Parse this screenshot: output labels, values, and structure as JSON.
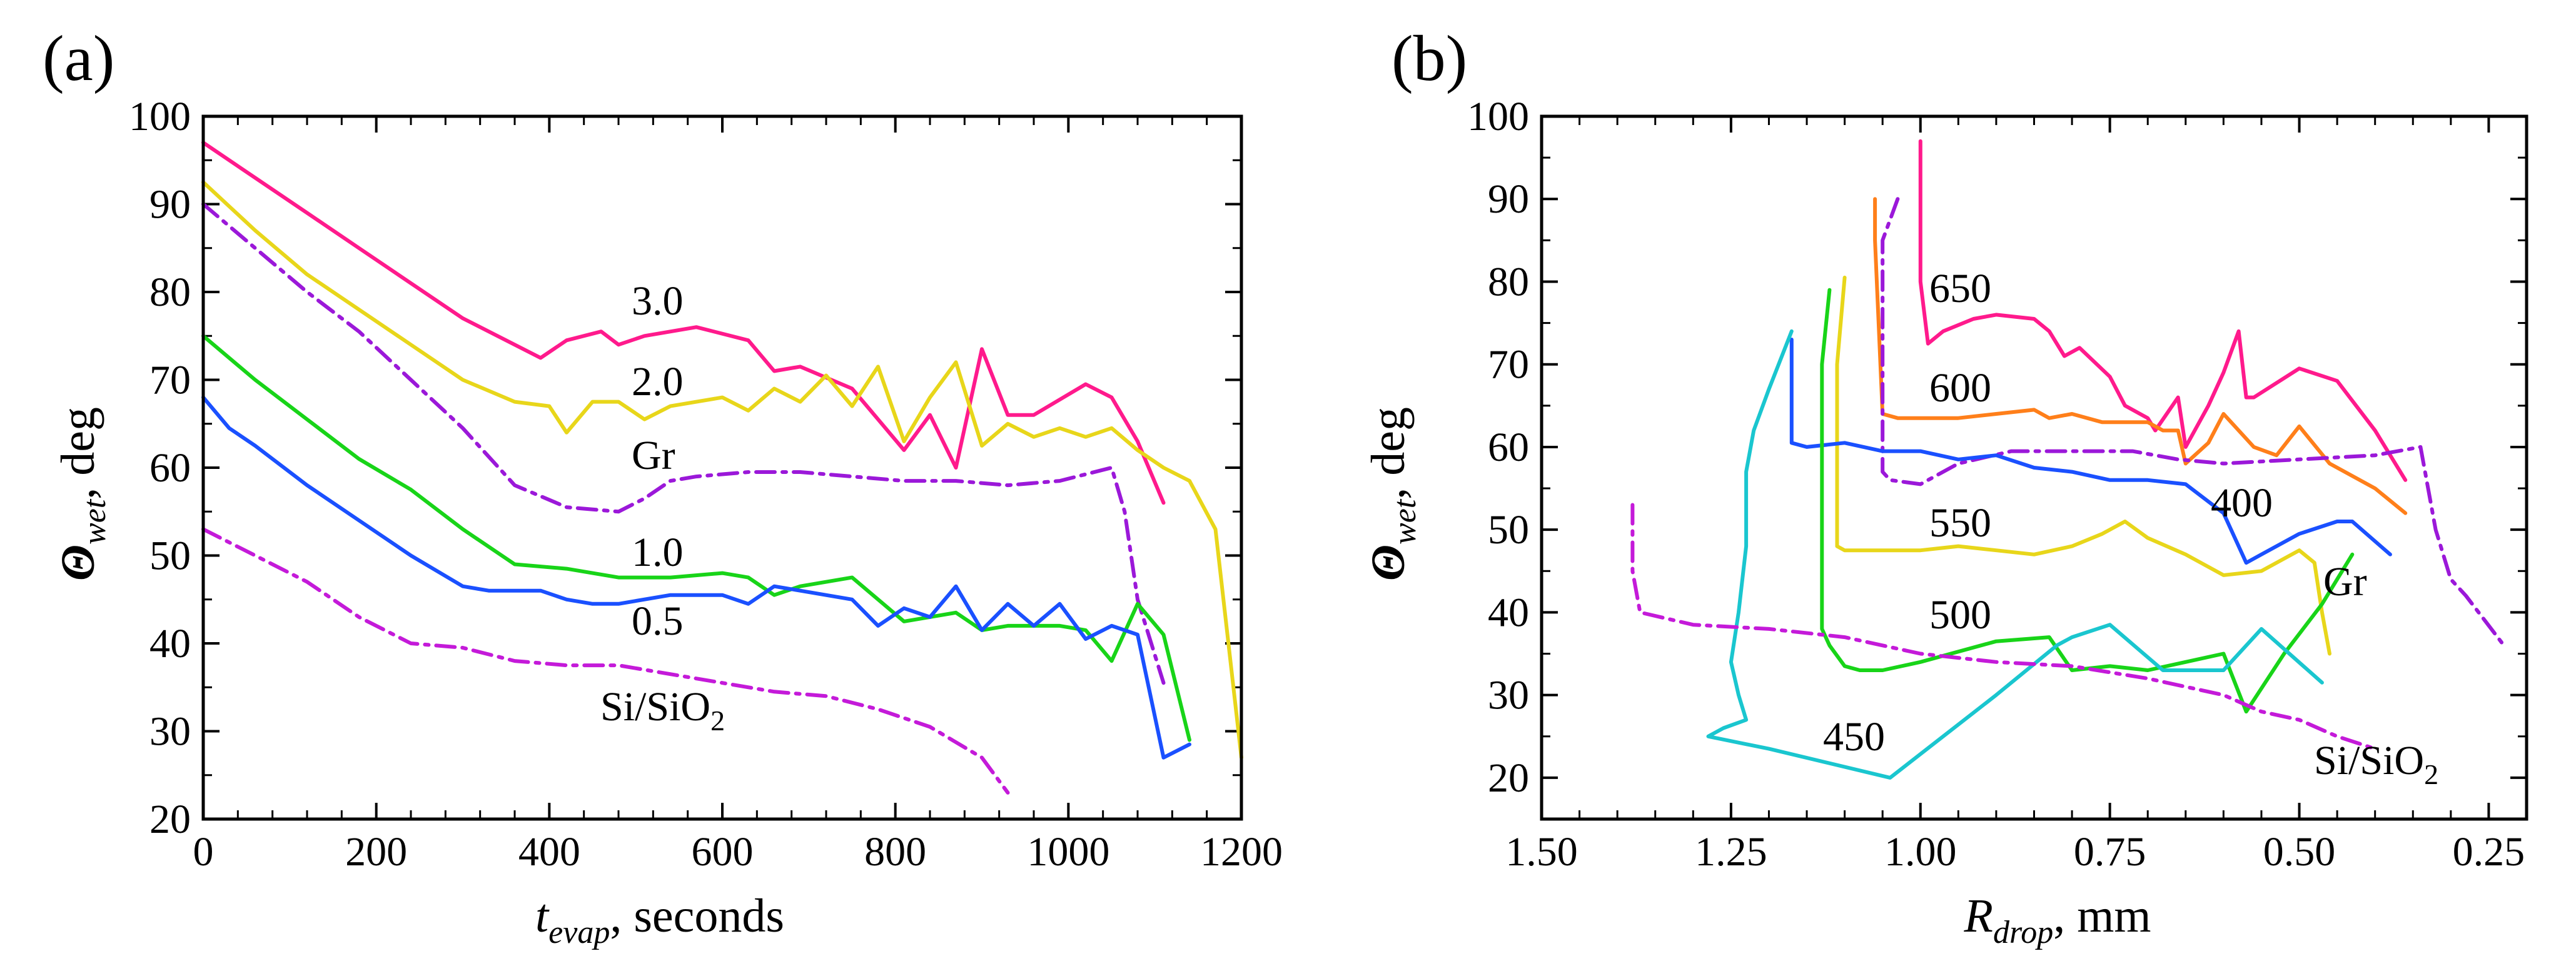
{
  "chart_data": [
    {
      "type": "line",
      "panel_label": "(a)",
      "xlabel": {
        "var": "t",
        "sub": "evap",
        "rest": ", seconds"
      },
      "ylabel": {
        "var": "Θ",
        "sub": "wet",
        "rest": ", deg"
      },
      "xlim": [
        0,
        1200
      ],
      "ylim": [
        20,
        100
      ],
      "xticks": [
        "0",
        "200",
        "400",
        "600",
        "800",
        "1000",
        "1200"
      ],
      "yticks": [
        "20",
        "30",
        "40",
        "50",
        "60",
        "70",
        "80",
        "90",
        "100"
      ],
      "grid": false,
      "series": [
        {
          "name": "3.0",
          "color": "#ff1a8c",
          "dash": "solid",
          "x": [
            0,
            60,
            120,
            180,
            240,
            300,
            360,
            390,
            420,
            460,
            480,
            510,
            570,
            630,
            660,
            690,
            750,
            810,
            840,
            870,
            900,
            930,
            960,
            1020,
            1050,
            1080,
            1110
          ],
          "y": [
            97,
            93,
            89,
            85,
            81,
            77,
            74,
            72.5,
            74.5,
            75.5,
            74,
            75,
            76,
            74.5,
            71,
            71.5,
            69,
            62,
            66,
            60,
            73.5,
            66,
            66,
            69.5,
            68,
            63,
            56
          ]
        },
        {
          "name": "2.0",
          "color": "#e8d61a",
          "dash": "solid",
          "x": [
            0,
            60,
            120,
            180,
            240,
            300,
            360,
            400,
            420,
            450,
            480,
            510,
            540,
            600,
            630,
            660,
            690,
            720,
            750,
            780,
            810,
            840,
            870,
            900,
            930,
            960,
            990,
            1020,
            1050,
            1080,
            1110,
            1140,
            1170,
            1200
          ],
          "y": [
            92.5,
            87,
            82,
            78,
            74,
            70,
            67.5,
            67,
            64,
            67.5,
            67.5,
            65.5,
            67,
            68,
            66.5,
            69,
            67.5,
            70.5,
            67,
            71.5,
            63,
            68,
            72,
            62.5,
            65,
            63.5,
            64.5,
            63.5,
            64.5,
            62,
            60,
            58.5,
            53,
            27
          ]
        },
        {
          "name": "Gr",
          "color": "#9b18d9",
          "dash": "dashdot",
          "x": [
            0,
            60,
            120,
            180,
            240,
            300,
            360,
            420,
            480,
            510,
            540,
            570,
            630,
            690,
            750,
            810,
            870,
            930,
            990,
            1050,
            1065,
            1080,
            1110
          ],
          "y": [
            90,
            85,
            80,
            75.5,
            70,
            64.5,
            58,
            55.5,
            55,
            56.5,
            58.5,
            59,
            59.5,
            59.5,
            59,
            58.5,
            58.5,
            58,
            58.5,
            60,
            55,
            45,
            35.5
          ]
        },
        {
          "name": "1.0",
          "color": "#18d418",
          "dash": "solid",
          "x": [
            0,
            60,
            120,
            180,
            240,
            300,
            360,
            420,
            480,
            540,
            600,
            630,
            660,
            690,
            750,
            810,
            870,
            900,
            930,
            960,
            990,
            1020,
            1050,
            1080,
            1110,
            1140
          ],
          "y": [
            75,
            70,
            65.5,
            61,
            57.5,
            53,
            49,
            48.5,
            47.5,
            47.5,
            48,
            47.5,
            45.5,
            46.5,
            47.5,
            42.5,
            43.5,
            41.5,
            42,
            42,
            42,
            41.5,
            38,
            44.5,
            41,
            29
          ]
        },
        {
          "name": "0.5",
          "color": "#1a50ff",
          "dash": "solid",
          "x": [
            0,
            30,
            60,
            120,
            180,
            240,
            300,
            330,
            390,
            420,
            450,
            480,
            540,
            570,
            600,
            630,
            660,
            690,
            750,
            780,
            810,
            840,
            870,
            900,
            930,
            960,
            990,
            1020,
            1050,
            1080,
            1110,
            1140
          ],
          "y": [
            68,
            64.5,
            62.5,
            58,
            54,
            50,
            46.5,
            46,
            46,
            45,
            44.5,
            44.5,
            45.5,
            45.5,
            45.5,
            44.5,
            46.5,
            46,
            45,
            42,
            44,
            43,
            46.5,
            41.5,
            44.5,
            42,
            44.5,
            40.5,
            42,
            41,
            27,
            28.5
          ]
        },
        {
          "name": "Si/SiO2",
          "color": "#c41ad9",
          "dash": "dashdot",
          "x": [
            0,
            60,
            120,
            180,
            240,
            300,
            360,
            420,
            480,
            540,
            600,
            660,
            720,
            780,
            840,
            900,
            930
          ],
          "y": [
            53,
            50,
            47,
            43,
            40,
            39.5,
            38,
            37.5,
            37.5,
            36.5,
            35.5,
            34.5,
            34,
            32.5,
            30.5,
            27,
            23
          ]
        }
      ]
    },
    {
      "type": "line",
      "panel_label": "(b)",
      "xlabel": {
        "var": "R",
        "sub": "drop",
        "rest": ", mm"
      },
      "ylabel": {
        "var": "Θ",
        "sub": "wet",
        "rest": ", deg"
      },
      "xlim": [
        1.5,
        0.2
      ],
      "ylim": [
        15,
        100
      ],
      "x_reversed": true,
      "xticks": [
        "1.50",
        "1.25",
        "1.00",
        "0.75",
        "0.50",
        "0.25"
      ],
      "yticks": [
        "20",
        "30",
        "40",
        "50",
        "60",
        "70",
        "80",
        "90",
        "100"
      ],
      "grid": false,
      "series": [
        {
          "name": "650",
          "color": "#ff1a8c",
          "dash": "solid",
          "x": [
            1.0,
            1.0,
            1.0,
            0.99,
            0.97,
            0.93,
            0.9,
            0.85,
            0.83,
            0.81,
            0.79,
            0.75,
            0.73,
            0.7,
            0.69,
            0.66,
            0.65,
            0.62,
            0.6,
            0.58,
            0.57,
            0.56,
            0.5,
            0.45,
            0.4,
            0.36
          ],
          "y": [
            97,
            88,
            80,
            72.5,
            74,
            75.5,
            76,
            75.5,
            74,
            71,
            72,
            68.5,
            65,
            63.5,
            62,
            66,
            60,
            65,
            69,
            74,
            66,
            66,
            69.5,
            68,
            62,
            56
          ]
        },
        {
          "name": "600",
          "color": "#ff7f1a",
          "dash": "solid",
          "x": [
            1.06,
            1.06,
            1.05,
            1.03,
            1.0,
            0.95,
            0.9,
            0.85,
            0.83,
            0.8,
            0.76,
            0.7,
            0.68,
            0.66,
            0.65,
            0.62,
            0.6,
            0.56,
            0.53,
            0.5,
            0.46,
            0.4,
            0.36
          ],
          "y": [
            90,
            85,
            64,
            63.5,
            63.5,
            63.5,
            64,
            64.5,
            63.5,
            64,
            63,
            63,
            62,
            62,
            58,
            60.5,
            64,
            60,
            59,
            62.5,
            58,
            55,
            52
          ]
        },
        {
          "name": "Gr",
          "color": "#9b18d9",
          "dash": "dashdot",
          "x": [
            1.03,
            1.05,
            1.05,
            1.04,
            1.0,
            0.95,
            0.88,
            0.8,
            0.72,
            0.66,
            0.6,
            0.5,
            0.4,
            0.34,
            0.32,
            0.3,
            0.28,
            0.23
          ],
          "y": [
            90,
            85,
            57,
            56,
            55.5,
            58,
            59.5,
            59.5,
            59.5,
            58.5,
            58,
            58.5,
            59,
            60,
            50,
            44,
            42,
            36
          ]
        },
        {
          "name": "550",
          "color": "#e8d61a",
          "dash": "solid",
          "x": [
            1.1,
            1.11,
            1.11,
            1.1,
            1.05,
            1.0,
            0.95,
            0.9,
            0.85,
            0.8,
            0.76,
            0.73,
            0.7,
            0.65,
            0.6,
            0.55,
            0.5,
            0.48,
            0.47,
            0.46
          ],
          "y": [
            80.5,
            70,
            48,
            47.5,
            47.5,
            47.5,
            48,
            47.5,
            47,
            48,
            49.5,
            51,
            49,
            47,
            44.5,
            45,
            47.5,
            46,
            40,
            35
          ]
        },
        {
          "name": "400",
          "color": "#1a50ff",
          "dash": "solid",
          "x": [
            1.17,
            1.17,
            1.15,
            1.1,
            1.05,
            1.0,
            0.95,
            0.9,
            0.85,
            0.8,
            0.75,
            0.7,
            0.65,
            0.6,
            0.57,
            0.55,
            0.5,
            0.45,
            0.43,
            0.38
          ],
          "y": [
            73,
            60.5,
            60,
            60.5,
            59.5,
            59.5,
            58.5,
            59,
            57.5,
            57,
            56,
            56,
            55.5,
            52,
            46,
            47,
            49.5,
            51,
            51,
            47
          ]
        },
        {
          "name": "500",
          "color": "#18d418",
          "dash": "solid",
          "x": [
            1.12,
            1.13,
            1.13,
            1.12,
            1.1,
            1.08,
            1.05,
            1.0,
            0.9,
            0.83,
            0.8,
            0.75,
            0.7,
            0.65,
            0.6,
            0.57,
            0.52,
            0.47,
            0.43
          ],
          "y": [
            79,
            70,
            38,
            36,
            33.5,
            33,
            33,
            34,
            36.5,
            37,
            33,
            33.5,
            33,
            34,
            35,
            28,
            35,
            41,
            47
          ]
        },
        {
          "name": "450",
          "color": "#1ac6cf",
          "dash": "solid",
          "x": [
            1.17,
            1.2,
            1.22,
            1.23,
            1.23,
            1.24,
            1.25,
            1.24,
            1.23,
            1.26,
            1.28,
            1.2,
            1.04,
            0.9,
            0.82,
            0.8,
            0.75,
            0.68,
            0.6,
            0.55,
            0.47
          ],
          "y": [
            74,
            67,
            62,
            57,
            48,
            40,
            34,
            30,
            27,
            26,
            25,
            23.5,
            20,
            30,
            36,
            37,
            38.5,
            33,
            33,
            38,
            31.5
          ]
        },
        {
          "name": "Si/SiO2",
          "color": "#c41ad9",
          "dash": "dashdot",
          "x": [
            1.38,
            1.38,
            1.37,
            1.3,
            1.2,
            1.1,
            1.0,
            0.9,
            0.8,
            0.7,
            0.6,
            0.55,
            0.5,
            0.45,
            0.4
          ],
          "y": [
            53,
            45,
            40,
            38.5,
            38,
            37,
            35,
            34,
            33.5,
            32,
            30,
            28,
            27,
            25,
            23.5
          ]
        }
      ]
    }
  ]
}
